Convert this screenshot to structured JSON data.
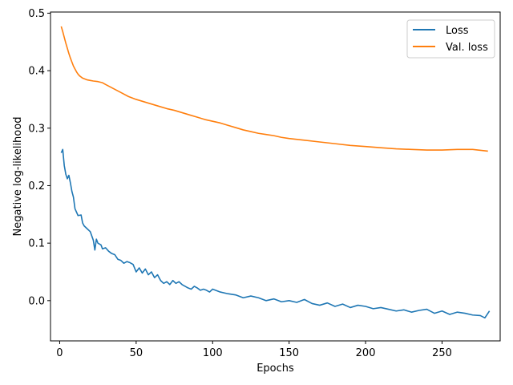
{
  "chart_data": {
    "type": "line",
    "title": "",
    "xlabel": "Epochs",
    "ylabel": "Negative log-likelihood",
    "xlim": [
      -6,
      288
    ],
    "ylim": [
      -0.07,
      0.502
    ],
    "xticks": [
      0,
      50,
      100,
      150,
      200,
      250
    ],
    "xtick_labels": [
      "0",
      "50",
      "100",
      "150",
      "200",
      "250"
    ],
    "yticks": [
      0.0,
      0.1,
      0.2,
      0.3,
      0.4,
      0.5
    ],
    "ytick_labels": [
      "0.0",
      "0.1",
      "0.2",
      "0.3",
      "0.4",
      "0.5"
    ],
    "grid": false,
    "legend_position": "top-right",
    "series": [
      {
        "name": "Loss",
        "color": "#1f77b4",
        "x": [
          1,
          2,
          3,
          4,
          5,
          6,
          7,
          8,
          9,
          10,
          12,
          14,
          15,
          16,
          18,
          20,
          22,
          23,
          24,
          25,
          27,
          28,
          30,
          32,
          34,
          36,
          38,
          40,
          42,
          44,
          46,
          48,
          50,
          52,
          54,
          56,
          58,
          60,
          62,
          64,
          66,
          68,
          70,
          72,
          74,
          76,
          78,
          80,
          82,
          84,
          86,
          88,
          90,
          92,
          94,
          96,
          98,
          100,
          105,
          110,
          115,
          120,
          125,
          130,
          135,
          140,
          145,
          150,
          155,
          160,
          165,
          170,
          175,
          180,
          185,
          190,
          195,
          200,
          205,
          210,
          215,
          220,
          225,
          230,
          235,
          240,
          245,
          250,
          255,
          260,
          265,
          270,
          275,
          278,
          281
        ],
        "y": [
          0.257,
          0.263,
          0.235,
          0.22,
          0.212,
          0.218,
          0.205,
          0.19,
          0.18,
          0.16,
          0.148,
          0.149,
          0.135,
          0.13,
          0.125,
          0.12,
          0.105,
          0.088,
          0.107,
          0.1,
          0.097,
          0.09,
          0.092,
          0.086,
          0.082,
          0.08,
          0.072,
          0.07,
          0.065,
          0.068,
          0.066,
          0.063,
          0.05,
          0.057,
          0.048,
          0.055,
          0.045,
          0.05,
          0.04,
          0.045,
          0.035,
          0.03,
          0.033,
          0.028,
          0.035,
          0.03,
          0.033,
          0.028,
          0.025,
          0.022,
          0.02,
          0.025,
          0.022,
          0.018,
          0.02,
          0.018,
          0.015,
          0.02,
          0.015,
          0.012,
          0.01,
          0.005,
          0.008,
          0.005,
          0.0,
          0.003,
          -0.002,
          0.0,
          -0.003,
          0.002,
          -0.005,
          -0.008,
          -0.004,
          -0.01,
          -0.006,
          -0.012,
          -0.008,
          -0.01,
          -0.014,
          -0.012,
          -0.015,
          -0.018,
          -0.016,
          -0.02,
          -0.017,
          -0.015,
          -0.022,
          -0.018,
          -0.024,
          -0.02,
          -0.022,
          -0.025,
          -0.026,
          -0.03,
          -0.018
        ]
      },
      {
        "name": "Val. loss",
        "color": "#ff7f0e",
        "x": [
          1,
          2,
          3,
          4,
          5,
          6,
          7,
          8,
          9,
          10,
          11,
          12,
          13,
          14,
          15,
          16,
          18,
          20,
          22,
          25,
          28,
          30,
          35,
          40,
          45,
          50,
          55,
          60,
          65,
          70,
          75,
          80,
          85,
          90,
          95,
          100,
          105,
          110,
          115,
          120,
          125,
          130,
          135,
          140,
          145,
          150,
          160,
          170,
          180,
          190,
          200,
          210,
          220,
          230,
          240,
          250,
          260,
          270,
          280
        ],
        "y": [
          0.477,
          0.468,
          0.458,
          0.448,
          0.439,
          0.43,
          0.422,
          0.415,
          0.408,
          0.403,
          0.398,
          0.394,
          0.391,
          0.389,
          0.387,
          0.386,
          0.384,
          0.383,
          0.382,
          0.381,
          0.379,
          0.376,
          0.369,
          0.362,
          0.355,
          0.35,
          0.346,
          0.342,
          0.338,
          0.334,
          0.331,
          0.327,
          0.323,
          0.319,
          0.315,
          0.312,
          0.309,
          0.305,
          0.301,
          0.297,
          0.294,
          0.291,
          0.289,
          0.287,
          0.284,
          0.282,
          0.279,
          0.276,
          0.273,
          0.27,
          0.268,
          0.266,
          0.264,
          0.263,
          0.262,
          0.262,
          0.263,
          0.263,
          0.26
        ]
      }
    ]
  }
}
